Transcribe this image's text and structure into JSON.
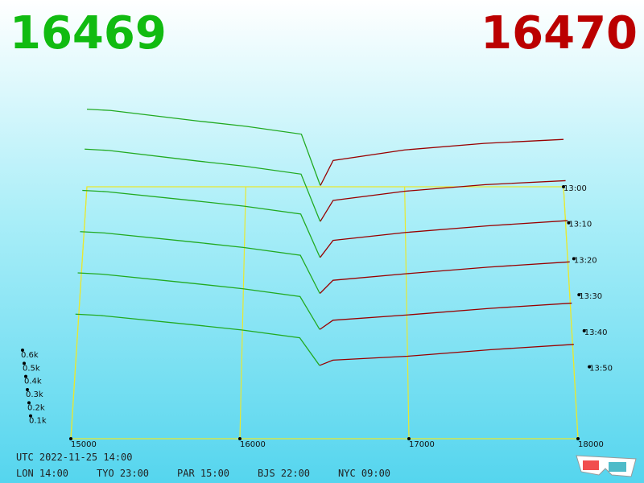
{
  "chart_data": {
    "type": "depth3d",
    "bid_price": 16469,
    "ask_price": 16470,
    "bid_color": "#11bb11",
    "ask_color": "#bb0000",
    "bid_line_color": "#22aa22",
    "ask_line_color": "#990000",
    "xlim": [
      15000,
      18000
    ],
    "xticks": [
      15000,
      16000,
      17000,
      18000
    ],
    "zlim": [
      0,
      600
    ],
    "zticks": [
      {
        "value": 100,
        "label": "0.1k"
      },
      {
        "value": 200,
        "label": "0.2k"
      },
      {
        "value": 300,
        "label": "0.3k"
      },
      {
        "value": 400,
        "label": "0.4k"
      },
      {
        "value": 500,
        "label": "0.5k"
      },
      {
        "value": 600,
        "label": "0.6k"
      }
    ],
    "time_ticks": [
      "13:00",
      "13:10",
      "13:20",
      "13:30",
      "13:40",
      "13:50"
    ],
    "bid_x": [
      15000,
      15150,
      15700,
      16000,
      16350,
      16469
    ],
    "ask_x": [
      16470,
      16550,
      17000,
      17500,
      18000
    ],
    "slices": [
      {
        "bids": [
          590,
          580,
          500,
          460,
          400,
          10
        ],
        "asks": [
          10,
          200,
          280,
          330,
          360
        ]
      },
      {
        "bids": [
          560,
          550,
          470,
          430,
          370,
          10
        ],
        "asks": [
          10,
          170,
          240,
          290,
          320
        ]
      },
      {
        "bids": [
          520,
          510,
          440,
          400,
          340,
          10
        ],
        "asks": [
          10,
          140,
          200,
          250,
          290
        ]
      },
      {
        "bids": [
          480,
          470,
          400,
          360,
          300,
          10
        ],
        "asks": [
          10,
          110,
          160,
          210,
          250
        ]
      },
      {
        "bids": [
          440,
          430,
          360,
          320,
          260,
          10
        ],
        "asks": [
          10,
          80,
          120,
          170,
          210
        ]
      },
      {
        "bids": [
          400,
          390,
          320,
          280,
          220,
          10
        ],
        "asks": [
          10,
          50,
          80,
          130,
          170
        ]
      }
    ]
  },
  "footer": {
    "utc": "UTC 2022-11-25 14:00",
    "cities": [
      "LON 14:00",
      "TYO 23:00",
      "PAR 15:00",
      "BJS 22:00",
      "NYC 09:00"
    ]
  }
}
